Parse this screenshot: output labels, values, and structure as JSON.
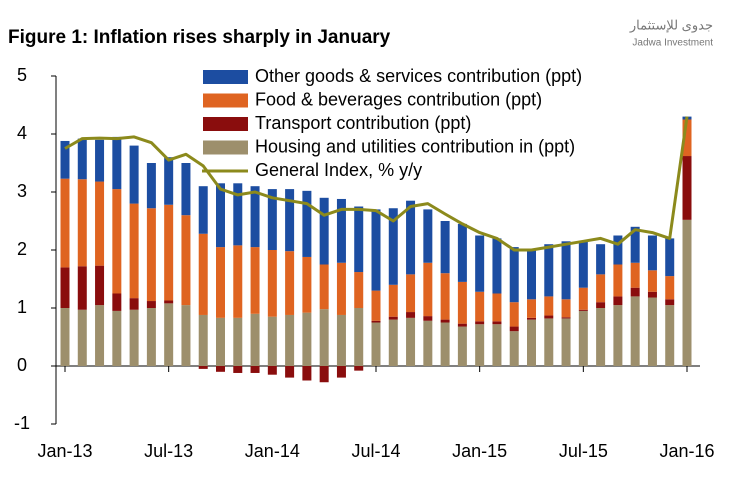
{
  "chart_data": {
    "type": "bar",
    "stacked": true,
    "title": "Figure 1: Inflation rises sharply in January",
    "logo": {
      "arabic": "جدوى للإستثمار",
      "english": "Jadwa Investment"
    },
    "categories": [
      "Jan-13",
      null,
      null,
      null,
      null,
      null,
      "Jul-13",
      null,
      null,
      null,
      null,
      null,
      "Jan-14",
      null,
      null,
      null,
      null,
      null,
      "Jul-14",
      null,
      null,
      null,
      null,
      null,
      "Jan-15",
      null,
      null,
      null,
      null,
      null,
      "Jul-15",
      null,
      null,
      null,
      null,
      null,
      "Jan-16"
    ],
    "ylim": [
      -1,
      5
    ],
    "yticks": [
      -1,
      0,
      1,
      2,
      3,
      4,
      5
    ],
    "legend": "top-right",
    "series": [
      {
        "name": "Other goods & services contribution (ppt)",
        "color": "#1c4da1",
        "values": [
          0.65,
          0.7,
          0.72,
          0.9,
          1.0,
          0.78,
          0.82,
          0.9,
          0.82,
          1.1,
          1.07,
          1.05,
          1.05,
          1.07,
          1.14,
          1.15,
          1.1,
          1.13,
          1.4,
          1.32,
          1.27,
          0.92,
          0.9,
          1.0,
          0.97,
          0.95,
          0.95,
          0.85,
          0.9,
          1.0,
          0.8,
          0.52,
          0.5,
          0.62,
          0.6,
          0.65,
          0.05
        ]
      },
      {
        "name": "Food & beverages contribution (ppt)",
        "color": "#df6421",
        "values": [
          1.53,
          1.5,
          1.45,
          1.8,
          1.63,
          1.6,
          1.65,
          1.55,
          1.4,
          1.22,
          1.25,
          1.15,
          1.15,
          1.1,
          0.96,
          0.77,
          0.9,
          0.62,
          0.52,
          0.55,
          0.65,
          0.92,
          0.8,
          0.72,
          0.51,
          0.48,
          0.42,
          0.32,
          0.33,
          0.31,
          0.38,
          0.48,
          0.55,
          0.43,
          0.37,
          0.4,
          0.63
        ]
      },
      {
        "name": "Transport contribution (ppt)",
        "color": "#8a0d0d",
        "values": [
          0.7,
          0.75,
          0.68,
          0.3,
          0.2,
          0.12,
          0.05,
          0.0,
          -0.05,
          -0.1,
          -0.12,
          -0.12,
          -0.15,
          -0.2,
          -0.25,
          -0.28,
          -0.2,
          -0.08,
          0.03,
          0.05,
          0.1,
          0.08,
          0.05,
          0.05,
          0.05,
          0.05,
          0.08,
          0.03,
          0.05,
          0.02,
          0.02,
          0.1,
          0.15,
          0.15,
          0.1,
          0.1,
          1.1
        ]
      },
      {
        "name": "Housing and utilities contribution in (ppt)",
        "color": "#9d8f6c",
        "values": [
          1.0,
          0.97,
          1.05,
          0.95,
          0.97,
          1.0,
          1.08,
          1.05,
          0.88,
          0.83,
          0.83,
          0.9,
          0.85,
          0.88,
          0.92,
          0.98,
          0.88,
          1.0,
          0.75,
          0.8,
          0.83,
          0.78,
          0.75,
          0.68,
          0.72,
          0.72,
          0.6,
          0.8,
          0.82,
          0.82,
          0.95,
          1.0,
          1.05,
          1.2,
          1.18,
          1.05,
          2.52
        ]
      },
      {
        "name": "General Index, % y/y",
        "color": "#8c8a1c",
        "type": "line",
        "values": [
          3.75,
          3.92,
          3.93,
          3.92,
          3.95,
          3.85,
          3.55,
          3.65,
          3.45,
          3.05,
          2.95,
          3.0,
          2.9,
          2.85,
          2.8,
          2.6,
          2.7,
          2.7,
          2.68,
          2.5,
          2.75,
          2.8,
          2.62,
          2.45,
          2.3,
          2.2,
          2.0,
          2.0,
          2.05,
          2.1,
          2.15,
          2.2,
          2.1,
          2.35,
          2.3,
          2.2,
          4.3
        ]
      }
    ]
  }
}
